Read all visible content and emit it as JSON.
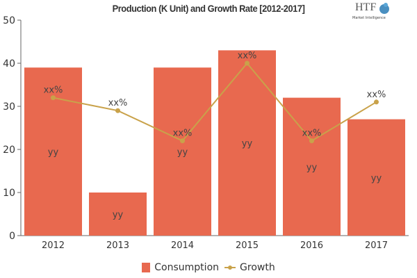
{
  "chart_data": {
    "type": "bar",
    "title": "Production (K Unit) and Growth Rate [2012-2017]",
    "categories": [
      "2012",
      "2013",
      "2014",
      "2015",
      "2016",
      "2017"
    ],
    "ylim": [
      0,
      50
    ],
    "yticks": [
      0,
      10,
      20,
      30,
      40,
      50
    ],
    "grid": false,
    "legend_position": "bottom",
    "series": [
      {
        "name": "Consumption",
        "type": "bar",
        "color": "#e8694f",
        "values": [
          39,
          10,
          39,
          43,
          32,
          27
        ],
        "data_labels": [
          "yy",
          "yy",
          "yy",
          "yy",
          "yy",
          "yy"
        ]
      },
      {
        "name": "Growth",
        "type": "line",
        "color": "#c9a24a",
        "values": [
          32,
          29,
          22,
          40,
          22,
          31
        ],
        "data_labels": [
          "xx%",
          "xx%",
          "xx%",
          "xx%",
          "xx%",
          "xx%"
        ]
      }
    ]
  },
  "logo": {
    "text": "HTF",
    "subtext": "Market Intelligence"
  }
}
